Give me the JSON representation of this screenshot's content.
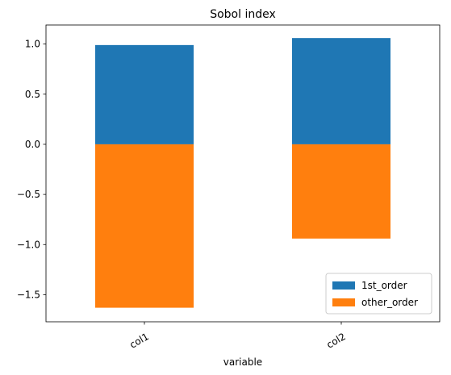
{
  "chart_data": {
    "type": "bar",
    "stacked": true,
    "title": "Sobol index",
    "xlabel": "variable",
    "ylabel": "",
    "categories": [
      "col1",
      "col2"
    ],
    "series": [
      {
        "name": "1st_order",
        "values": [
          0.99,
          1.06
        ],
        "color": "#1f77b4"
      },
      {
        "name": "other_order",
        "values": [
          -1.63,
          -0.94
        ],
        "color": "#ff7f0e"
      }
    ],
    "ylim": [
      -1.77,
      1.19
    ],
    "yticks": [
      1.0,
      0.5,
      0.0,
      -0.5,
      -1.0,
      -1.5
    ],
    "ytick_labels": [
      "1.0",
      "0.5",
      "0.0",
      "−0.5",
      "−1.0",
      "−1.5"
    ],
    "xtick_rotation": 30,
    "grid": false,
    "legend_position": "lower-right"
  }
}
